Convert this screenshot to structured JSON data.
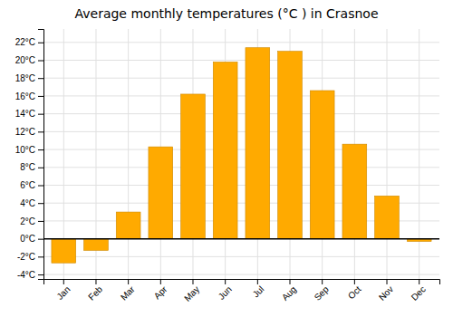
{
  "chart_data": {
    "type": "bar",
    "title": "Average monthly temperatures (°C ) in Crasnoe",
    "categories": [
      "Jan",
      "Feb",
      "Mar",
      "Apr",
      "May",
      "Jun",
      "Jul",
      "Aug",
      "Sep",
      "Oct",
      "Nov",
      "Dec"
    ],
    "values": [
      -2.7,
      -1.3,
      3.0,
      10.3,
      16.2,
      19.8,
      21.4,
      21.0,
      16.6,
      10.6,
      4.8,
      -0.3
    ],
    "color": "#FFAA00",
    "ylim": [
      -4.5,
      23.5
    ],
    "yticks": [
      {
        "value": -4,
        "label": "-4°C"
      },
      {
        "value": -2,
        "label": "-2°C"
      },
      {
        "value": 0,
        "label": "0°C"
      },
      {
        "value": 2,
        "label": "2°C"
      },
      {
        "value": 4,
        "label": "4°C"
      },
      {
        "value": 6,
        "label": "6°C"
      },
      {
        "value": 8,
        "label": "8°C"
      },
      {
        "value": 10,
        "label": "10°C"
      },
      {
        "value": 12,
        "label": "12°C"
      },
      {
        "value": 14,
        "label": "14°C"
      },
      {
        "value": 16,
        "label": "16°C"
      },
      {
        "value": 18,
        "label": "18°C"
      },
      {
        "value": 20,
        "label": "20°C"
      },
      {
        "value": 22,
        "label": "22°C"
      }
    ],
    "grid": true
  }
}
